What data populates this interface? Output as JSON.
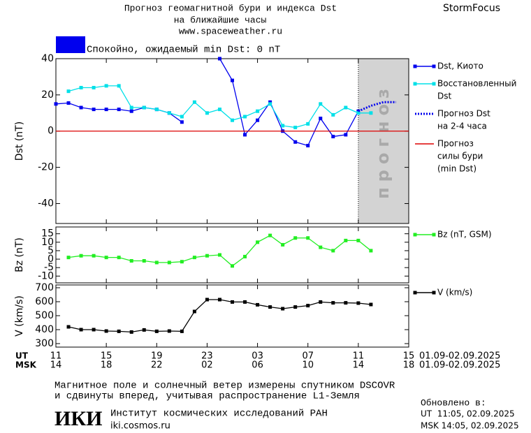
{
  "header": {
    "title": "Прогноз геомагнитной бури и индекса Dst",
    "subtitle": "на ближайшие часы",
    "url": "www.spaceweather.ru",
    "brand": "StormFocus",
    "status": "Спокойно, ожидаемый min Dst: 0 nT",
    "status_color": "#0000ee"
  },
  "chart_data": [
    {
      "type": "line",
      "y_label": "Dst (nT)",
      "xlim": [
        0,
        28
      ],
      "ylim": [
        -51,
        40
      ],
      "yticks": [
        -40,
        -20,
        0,
        20,
        40
      ],
      "x": [
        0,
        1,
        2,
        3,
        4,
        5,
        6,
        7,
        8,
        9,
        10,
        11,
        12,
        13,
        14,
        15,
        16,
        17,
        18,
        19,
        20,
        21,
        22,
        23,
        24,
        25
      ],
      "forecast_region": {
        "x": [
          24,
          28
        ],
        "label": "прогноз",
        "color": "#d3d3d3"
      },
      "series": [
        {
          "name": [
            "Dst, Киото"
          ],
          "color": "#0000ee",
          "marker": "square",
          "values": [
            15,
            15.5,
            13,
            12,
            12,
            12,
            11,
            13,
            12,
            10,
            5,
            null,
            null,
            40,
            28,
            -2,
            6,
            16,
            0,
            -6,
            -8,
            7,
            -3,
            -2,
            11,
            null
          ]
        },
        {
          "name": [
            "Восстановленный",
            "Dst"
          ],
          "color": "#00e0e8",
          "marker": "square",
          "values": [
            null,
            22,
            24,
            24,
            25,
            25,
            13,
            13,
            12,
            10,
            8,
            16,
            10,
            12,
            6,
            8,
            11,
            15,
            3,
            2,
            4,
            15,
            9,
            13,
            10,
            10
          ]
        },
        {
          "name": [
            "Прогноз Dst",
            "на 2-4 часа"
          ],
          "color": "#0000ee",
          "style": "dotted",
          "x": [
            24,
            25,
            26,
            27
          ],
          "values": [
            11,
            14,
            16,
            16
          ]
        },
        {
          "name": [
            "Прогноз",
            "силы бури",
            "(min Dst)"
          ],
          "color": "#dd0000",
          "x": [
            0,
            28
          ],
          "values": [
            0,
            0
          ]
        }
      ]
    },
    {
      "type": "line",
      "y_label": "Bz (nT)",
      "xlim": [
        0,
        28
      ],
      "ylim": [
        -14,
        19
      ],
      "yticks": [
        -10,
        -5,
        0,
        5,
        10,
        15
      ],
      "x": [
        0,
        1,
        2,
        3,
        4,
        5,
        6,
        7,
        8,
        9,
        10,
        11,
        12,
        13,
        14,
        15,
        16,
        17,
        18,
        19,
        20,
        21,
        22,
        23,
        24,
        25
      ],
      "series": [
        {
          "name": [
            "Bz (nT, GSM)"
          ],
          "color": "#22ee22",
          "marker": "square",
          "values": [
            null,
            1,
            2,
            2,
            1,
            1,
            -1,
            -1,
            -2,
            -2,
            -1.5,
            1,
            2,
            2.5,
            -4,
            1.5,
            10,
            14,
            8.5,
            12.5,
            12.5,
            7,
            5,
            11,
            11,
            5
          ]
        }
      ]
    },
    {
      "type": "line",
      "y_label": "V (km/s)",
      "xlim": [
        0,
        28
      ],
      "ylim": [
        275,
        720
      ],
      "yticks": [
        300,
        400,
        500,
        600,
        700
      ],
      "x": [
        0,
        1,
        2,
        3,
        4,
        5,
        6,
        7,
        8,
        9,
        10,
        11,
        12,
        13,
        14,
        15,
        16,
        17,
        18,
        19,
        20,
        21,
        22,
        23,
        24,
        25
      ],
      "series": [
        {
          "name": [
            "V (km/s)"
          ],
          "color": "#000000",
          "marker": "square",
          "values": [
            null,
            420,
            400,
            400,
            390,
            388,
            383,
            398,
            388,
            390,
            388,
            530,
            615,
            615,
            598,
            598,
            578,
            562,
            550,
            562,
            572,
            598,
            592,
            592,
            590,
            580
          ]
        }
      ],
      "ut_label": "UT",
      "msk_label": "MSK",
      "xticks": [
        {
          "value": 0,
          "label": "11"
        },
        {
          "value": 4,
          "label": "15"
        },
        {
          "value": 8,
          "label": "19"
        },
        {
          "value": 12,
          "label": "23"
        },
        {
          "value": 16,
          "label": "03"
        },
        {
          "value": 20,
          "label": "07"
        },
        {
          "value": 24,
          "label": "11"
        },
        {
          "value": 28,
          "label": "15"
        }
      ],
      "msk_xticks": [
        {
          "value": 0,
          "label": "14"
        },
        {
          "value": 4,
          "label": "18"
        },
        {
          "value": 8,
          "label": "22"
        },
        {
          "value": 12,
          "label": "02"
        },
        {
          "value": 16,
          "label": "06"
        },
        {
          "value": 20,
          "label": "10"
        },
        {
          "value": 24,
          "label": "14"
        },
        {
          "value": 28,
          "label": "18"
        }
      ],
      "ut_range": "01.09-02.09.2025",
      "msk_range": "01.09-02.09.2025"
    }
  ],
  "footer": {
    "note": [
      "Магнитное поле и солнечный ветер измерены спутником DSCOVR",
      "и сдвинуты вперед, учитывая распространение L1-Земля"
    ],
    "logo": "ИКИ",
    "institute": "Институт космических исследований РАН",
    "site": "iki.cosmos.ru",
    "updated": "Обновлено в:",
    "updated_ut": "UT  11:05, 02.09.2025",
    "updated_msk": "MSK 14:05, 02.09.2025"
  }
}
